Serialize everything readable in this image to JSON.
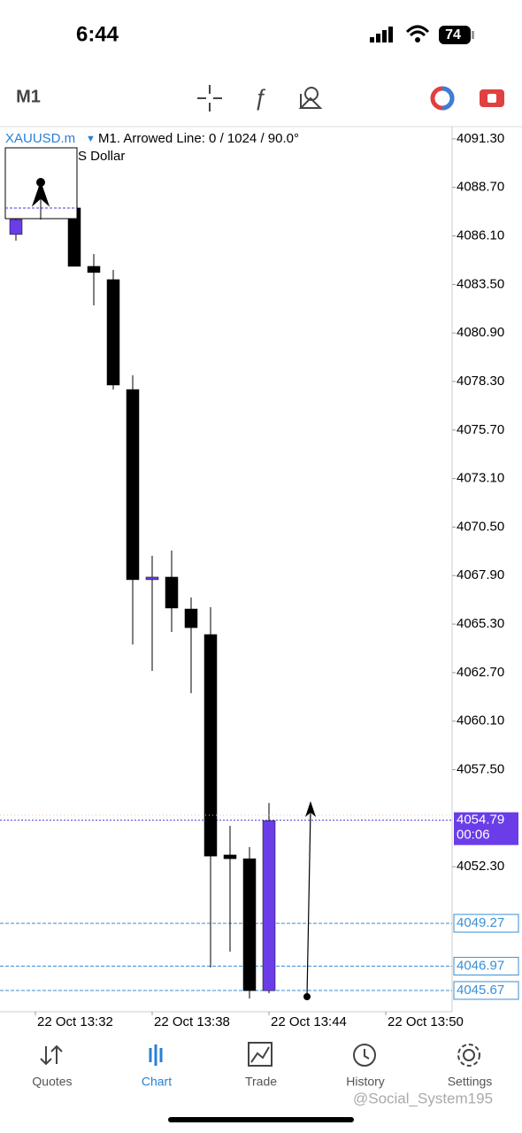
{
  "status_bar": {
    "time": "6:44",
    "battery": "74"
  },
  "toolbar": {
    "timeframe": "M1"
  },
  "chart": {
    "type": "candlestick",
    "symbol": "XAUUSD.m",
    "info": "M1. Arrowed Line: 0 / 1024 / 90.0°",
    "subtitle": "S Dollar",
    "ylim": [
      4044.53,
      4091.96
    ],
    "yticks": [
      {
        "value": 4091.3,
        "label": "4091.30"
      },
      {
        "value": 4088.7,
        "label": "4088.70"
      },
      {
        "value": 4086.1,
        "label": "4086.10"
      },
      {
        "value": 4083.5,
        "label": "4083.50"
      },
      {
        "value": 4080.9,
        "label": "4080.90"
      },
      {
        "value": 4078.3,
        "label": "4078.30"
      },
      {
        "value": 4075.7,
        "label": "4075.70"
      },
      {
        "value": 4073.1,
        "label": "4073.10"
      },
      {
        "value": 4070.5,
        "label": "4070.50"
      },
      {
        "value": 4067.9,
        "label": "4067.90"
      },
      {
        "value": 4065.3,
        "label": "4065.30"
      },
      {
        "value": 4062.7,
        "label": "4062.70"
      },
      {
        "value": 4060.1,
        "label": "4060.10"
      },
      {
        "value": 4057.5,
        "label": "4057.50"
      },
      {
        "value": 4052.3,
        "label": "4052.30"
      }
    ],
    "candles": [
      {
        "open": 4086.18,
        "high": 4087.36,
        "low": 4085.85,
        "close": 4086.98,
        "color": "#6a3de8"
      },
      null,
      null,
      {
        "open": 4087.6,
        "high": 4087.6,
        "low": 4084.47,
        "close": 4084.47,
        "color": "#000000"
      },
      {
        "open": 4084.47,
        "high": 4085.13,
        "low": 4082.38,
        "close": 4084.14,
        "color": "#000000"
      },
      {
        "open": 4083.76,
        "high": 4084.28,
        "low": 4077.87,
        "close": 4078.11,
        "color": "#000000"
      },
      {
        "open": 4077.87,
        "high": 4078.63,
        "low": 4064.21,
        "close": 4067.68,
        "color": "#000000"
      },
      {
        "open": 4067.68,
        "high": 4068.96,
        "low": 4062.79,
        "close": 4067.82,
        "color": "#6a3de8"
      },
      {
        "open": 4067.82,
        "high": 4069.24,
        "low": 4064.88,
        "close": 4066.16,
        "color": "#000000"
      },
      {
        "open": 4066.11,
        "high": 4066.73,
        "low": 4061.6,
        "close": 4065.11,
        "color": "#000000"
      },
      {
        "open": 4064.74,
        "high": 4066.21,
        "low": 4046.9,
        "close": 4052.87,
        "color": "#000000"
      },
      {
        "open": 4052.93,
        "high": 4054.49,
        "low": 4047.75,
        "close": 4052.73,
        "color": "#000000"
      },
      {
        "open": 4052.73,
        "high": 4053.35,
        "low": 4045.24,
        "close": 4045.66,
        "color": "#000000"
      },
      {
        "open": 4045.66,
        "high": 4055.72,
        "low": 4045.52,
        "close": 4054.77,
        "color": "#6a3de8"
      }
    ],
    "xticks": [
      "22 Oct 13:32",
      "22 Oct 13:38",
      "22 Oct 13:44",
      "22 Oct 13:50"
    ],
    "current_price": {
      "value": 4054.79,
      "label": "4054.79"
    },
    "timer": "00:06",
    "order_levels": [
      {
        "value": 4049.27,
        "label": "4049.27"
      },
      {
        "value": 4046.97,
        "label": "4046.97"
      },
      {
        "value": 4045.67,
        "label": "4045.67"
      }
    ]
  },
  "tabs": [
    "Quotes",
    "Chart",
    "Trade",
    "History",
    "Settings"
  ],
  "watermark": "@Social_System195"
}
